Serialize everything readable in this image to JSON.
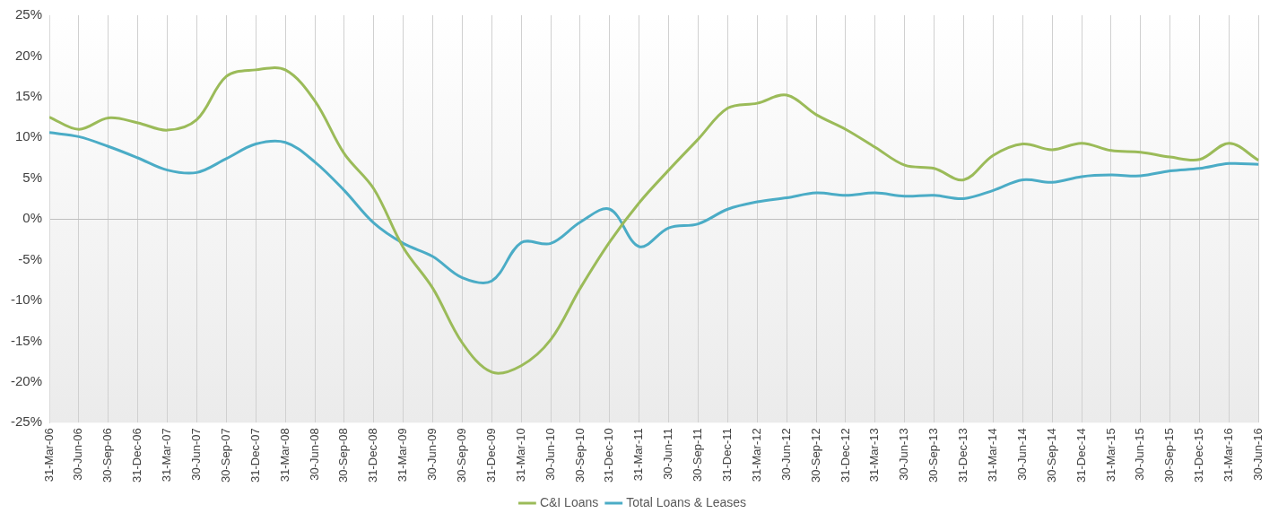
{
  "chart_data": {
    "type": "line",
    "categories": [
      "31-Mar-06",
      "30-Jun-06",
      "30-Sep-06",
      "31-Dec-06",
      "31-Mar-07",
      "30-Jun-07",
      "30-Sep-07",
      "31-Dec-07",
      "31-Mar-08",
      "30-Jun-08",
      "30-Sep-08",
      "31-Dec-08",
      "31-Mar-09",
      "30-Jun-09",
      "30-Sep-09",
      "31-Dec-09",
      "31-Mar-10",
      "30-Jun-10",
      "30-Sep-10",
      "31-Dec-10",
      "31-Mar-11",
      "30-Jun-11",
      "30-Sep-11",
      "31-Dec-11",
      "31-Mar-12",
      "30-Jun-12",
      "30-Sep-12",
      "31-Dec-12",
      "31-Mar-13",
      "30-Jun-13",
      "30-Sep-13",
      "31-Dec-13",
      "31-Mar-14",
      "30-Jun-14",
      "30-Sep-14",
      "31-Dec-14",
      "31-Mar-15",
      "30-Jun-15",
      "30-Sep-15",
      "31-Dec-15",
      "31-Mar-16",
      "30-Jun-16"
    ],
    "series": [
      {
        "name": "C&I Loans",
        "color": "#9bbb59",
        "values": [
          12.5,
          11,
          12.4,
          11.8,
          10.9,
          12.2,
          17.5,
          18.3,
          18.3,
          14.5,
          8,
          3.7,
          -3.5,
          -8.5,
          -15.2,
          -18.8,
          -18,
          -14.8,
          -8.5,
          -2.8,
          2,
          6,
          9.8,
          13.6,
          14.2,
          15.2,
          12.8,
          11,
          8.8,
          6.6,
          6.2,
          4.8,
          7.8,
          9.2,
          8.5,
          9.3,
          8.4,
          8.2,
          7.6,
          7.3,
          9.3,
          7.2
        ]
      },
      {
        "name": "Total Loans & Leases",
        "color": "#4bacc6",
        "values": [
          10.6,
          10.1,
          8.9,
          7.5,
          6,
          5.7,
          7.4,
          9.2,
          9.4,
          7,
          3.5,
          -0.5,
          -3,
          -4.6,
          -7.2,
          -7.6,
          -2.9,
          -3,
          -0.4,
          1.2,
          -3.4,
          -1.1,
          -0.6,
          1.2,
          2.1,
          2.6,
          3.2,
          2.9,
          3.2,
          2.8,
          2.9,
          2.5,
          3.5,
          4.8,
          4.5,
          5.2,
          5.4,
          5.3,
          5.9,
          6.2,
          6.8,
          6.7
        ]
      }
    ],
    "ylim": [
      -25,
      25
    ],
    "yticks": [
      {
        "value": -25,
        "label": "-25%"
      },
      {
        "value": -20,
        "label": "-20%"
      },
      {
        "value": -15,
        "label": "-15%"
      },
      {
        "value": -10,
        "label": "-10%"
      },
      {
        "value": -5,
        "label": "-5%"
      },
      {
        "value": 0,
        "label": "0%"
      },
      {
        "value": 5,
        "label": "5%"
      },
      {
        "value": 10,
        "label": "10%"
      },
      {
        "value": 15,
        "label": "15%"
      },
      {
        "value": 20,
        "label": "20%"
      },
      {
        "value": 25,
        "label": "25%"
      }
    ],
    "grid": true,
    "legend": "bottom"
  }
}
